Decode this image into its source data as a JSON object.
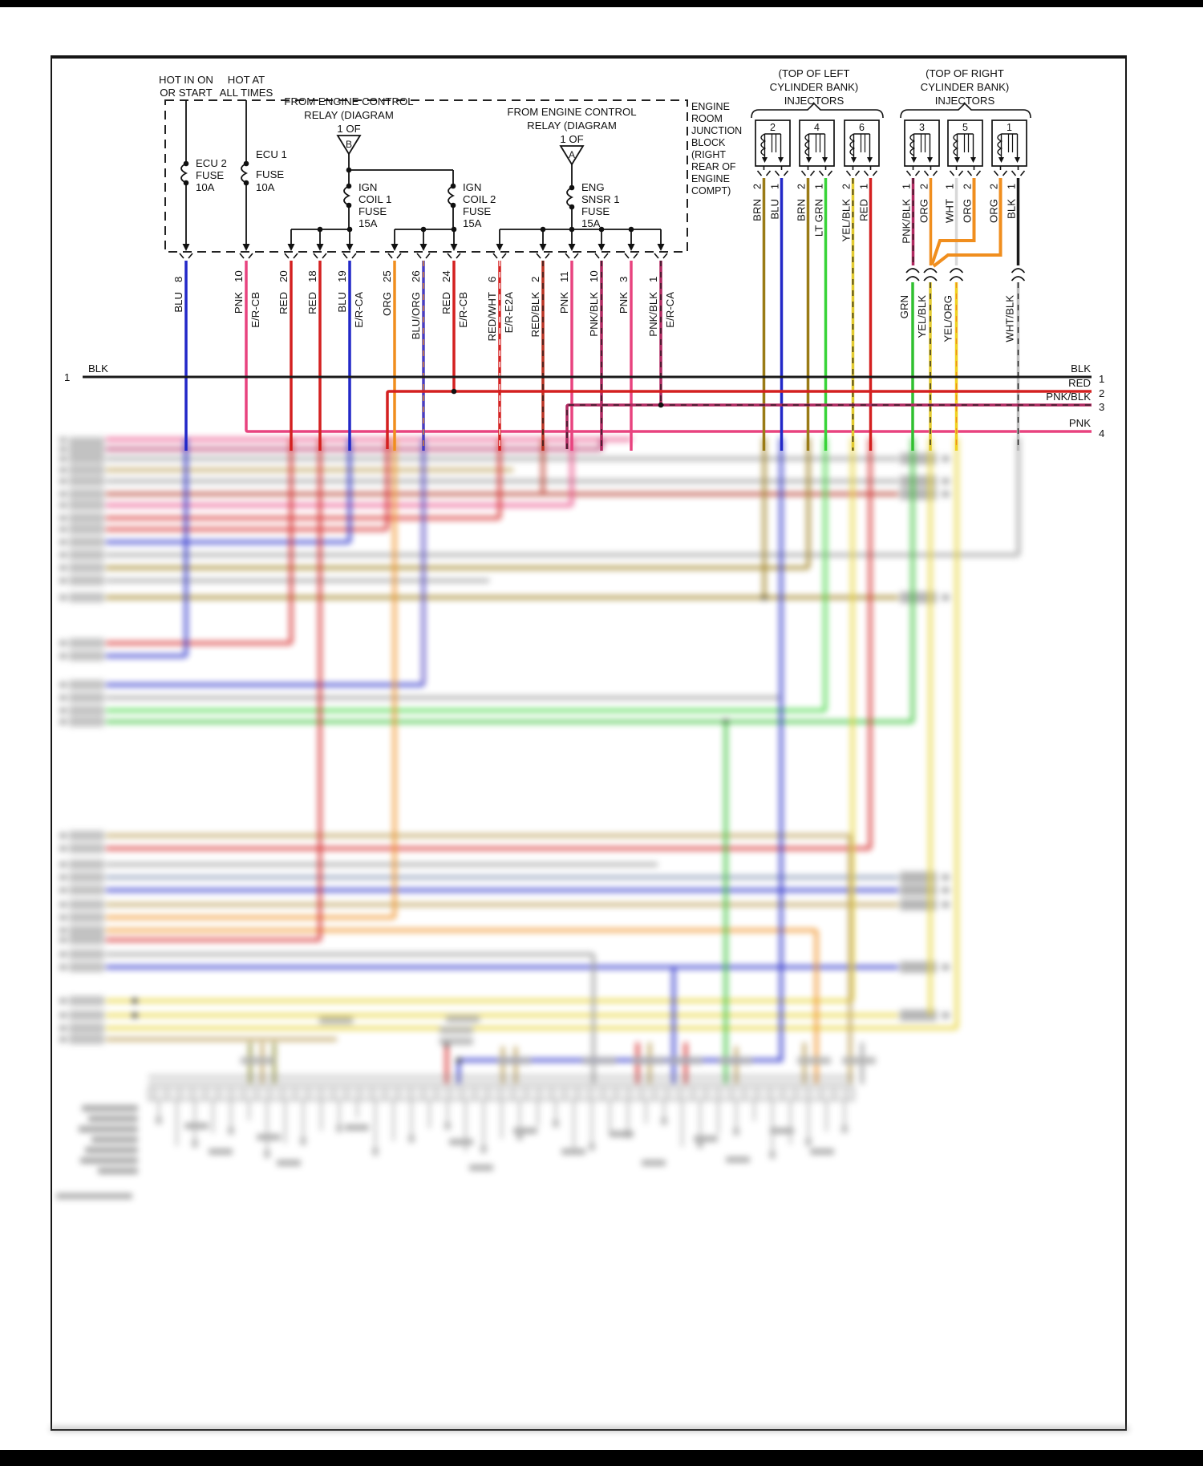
{
  "page": {
    "supply": [
      {
        "line1": "HOT IN ON",
        "line2": "OR START"
      },
      {
        "line1": "HOT AT",
        "line2": "ALL TIMES"
      }
    ],
    "relays": [
      {
        "lines": [
          "FROM ENGINE CONTROL",
          "RELAY (DIAGRAM",
          "1 OF"
        ],
        "letter": "B"
      },
      {
        "lines": [
          "FROM ENGINE CONTROL",
          "RELAY (DIAGRAM",
          "1 OF"
        ],
        "letter": "A"
      }
    ],
    "fuses": {
      "ecu2": [
        "ECU 2",
        "FUSE",
        "10A"
      ],
      "ecu1": [
        "ECU 1",
        "FUSE",
        "10A"
      ],
      "ign1": [
        "IGN",
        "COIL 1",
        "FUSE",
        "15A"
      ],
      "ign2": [
        "IGN",
        "COIL 2",
        "FUSE",
        "15A"
      ],
      "eng": [
        "ENG",
        "SNSR 1",
        "FUSE",
        "15A"
      ]
    },
    "junction_block": [
      "ENGINE",
      "ROOM",
      "JUNCTION",
      "BLOCK",
      "(RIGHT",
      "REAR OF",
      "ENGINE",
      "COMPT)"
    ],
    "pins": [
      {
        "pin": "8",
        "color": "BLU",
        "extra": ""
      },
      {
        "pin": "10",
        "color": "PNK",
        "extra": "E/R-CB"
      },
      {
        "pin": "20",
        "color": "RED",
        "extra": ""
      },
      {
        "pin": "18",
        "color": "RED",
        "extra": ""
      },
      {
        "pin": "19",
        "color": "BLU",
        "extra": "E/R-CA"
      },
      {
        "pin": "25",
        "color": "ORG",
        "extra": ""
      },
      {
        "pin": "26",
        "color": "BLU/ORG",
        "extra": ""
      },
      {
        "pin": "24",
        "color": "RED",
        "extra": "E/R-CB"
      },
      {
        "pin": "6",
        "color": "RED/WHT",
        "extra": "E/R-E2A"
      },
      {
        "pin": "2",
        "color": "RED/BLK",
        "extra": ""
      },
      {
        "pin": "11",
        "color": "PNK",
        "extra": ""
      },
      {
        "pin": "10",
        "color": "PNK/BLK",
        "extra": ""
      },
      {
        "pin": "3",
        "color": "PNK",
        "extra": ""
      },
      {
        "pin": "1",
        "color": "PNK/BLK",
        "extra": "E/R-CA"
      }
    ],
    "banks": [
      {
        "title": [
          "(TOP OF LEFT",
          "CYLINDER BANK)",
          "INJECTORS"
        ],
        "injectors": [
          {
            "num": "2",
            "left": {
              "pin": "2",
              "color": "BRN"
            },
            "right": {
              "pin": "1",
              "color": "BLU"
            }
          },
          {
            "num": "4",
            "left": {
              "pin": "2",
              "color": "BRN"
            },
            "right": {
              "pin": "1",
              "color": "LT GRN"
            }
          },
          {
            "num": "6",
            "left": {
              "pin": "2",
              "color": "YEL/BLK"
            },
            "right": {
              "pin": "1",
              "color": "RED"
            }
          }
        ]
      },
      {
        "title": [
          "(TOP OF RIGHT",
          "CYLINDER BANK)",
          "INJECTORS"
        ],
        "injectors": [
          {
            "num": "3",
            "left": {
              "pin": "1",
              "color": "PNK/BLK"
            },
            "right": {
              "pin": "2",
              "color": "ORG"
            }
          },
          {
            "num": "5",
            "left": {
              "pin": "1",
              "color": "WHT"
            },
            "right": {
              "pin": "2",
              "color": "ORG"
            }
          },
          {
            "num": "1",
            "left": {
              "pin": "2",
              "color": "ORG"
            },
            "right": {
              "pin": "1",
              "color": "BLK"
            }
          }
        ]
      }
    ],
    "splices": [
      "GRN",
      "YEL/BLK",
      "YEL/ORG",
      "WHT/BLK"
    ],
    "lines": [
      {
        "num": "1",
        "color": "BLK"
      },
      {
        "num": "2",
        "color": "RED"
      },
      {
        "num": "3",
        "color": "PNK/BLK"
      },
      {
        "num": "4",
        "color": "PNK"
      }
    ],
    "left_line": {
      "num": "1",
      "color": "BLK"
    }
  },
  "palette": {
    "BLK": "#1a1a1a",
    "BLU": "#2228c8",
    "PNK": "#e8437f",
    "RED": "#d42020",
    "ORG": "#f08e1e",
    "BRN": "#9a7b16",
    "LT GRN": "#38d438",
    "YEL/BLK": "#e2ca2e",
    "GRN": "#30c030",
    "YEL/ORG": "#f0d020",
    "WHT": "#d8d8d8",
    "WHT/BLK": "#bcbcbc",
    "PNK/BLK": "#b02860",
    "RED/BLK": "#bb3322",
    "RED/WHT": "#d42020",
    "BLU/ORG": "#4a3ec0"
  }
}
